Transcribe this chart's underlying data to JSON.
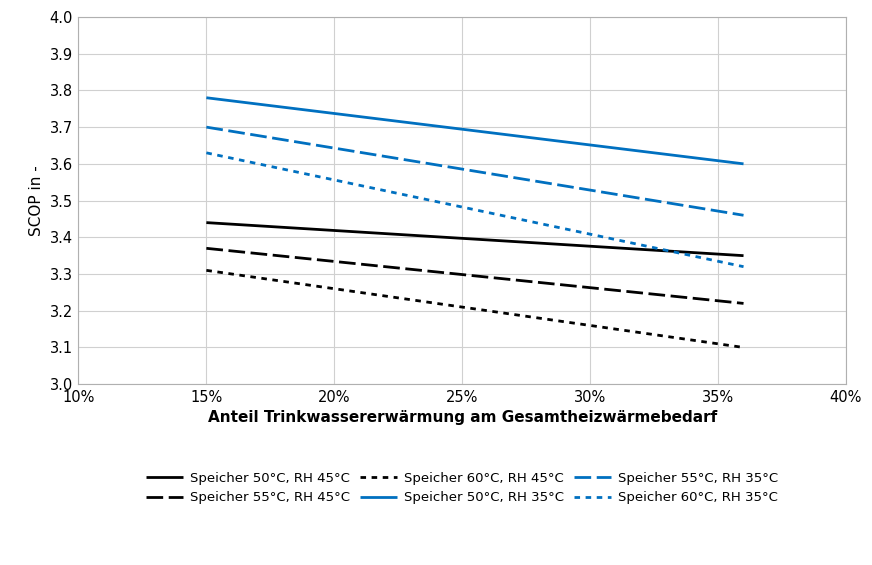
{
  "x": [
    0.15,
    0.36
  ],
  "lines": [
    {
      "label": "Speicher 50°C, RH 45°C",
      "color": "#000000",
      "linestyle": "solid",
      "y": [
        3.44,
        3.35
      ]
    },
    {
      "label": "Speicher 55°C, RH 45°C",
      "color": "#000000",
      "linestyle": "dashed",
      "y": [
        3.37,
        3.22
      ]
    },
    {
      "label": "Speicher 60°C, RH 45°C",
      "color": "#000000",
      "linestyle": "dotted",
      "y": [
        3.31,
        3.1
      ]
    },
    {
      "label": "Speicher 50°C, RH 35°C",
      "color": "#0070C0",
      "linestyle": "solid",
      "y": [
        3.78,
        3.6
      ]
    },
    {
      "label": "Speicher 55°C, RH 35°C",
      "color": "#0070C0",
      "linestyle": "dashed",
      "y": [
        3.7,
        3.46
      ]
    },
    {
      "label": "Speicher 60°C, RH 35°C",
      "color": "#0070C0",
      "linestyle": "dotted",
      "y": [
        3.63,
        3.32
      ]
    }
  ],
  "xlabel": "Anteil Trinkwassererwärmung am Gesamtheizwärmebedarf",
  "ylabel": "SCOP in -",
  "xlim": [
    0.1,
    0.4
  ],
  "ylim": [
    3.0,
    4.0
  ],
  "xticks": [
    0.1,
    0.15,
    0.2,
    0.25,
    0.3,
    0.35,
    0.4
  ],
  "yticks": [
    3.0,
    3.1,
    3.2,
    3.3,
    3.4,
    3.5,
    3.6,
    3.7,
    3.8,
    3.9,
    4.0
  ],
  "grid_color": "#d0d0d0",
  "bg_color": "#ffffff",
  "linewidth": 2.0
}
